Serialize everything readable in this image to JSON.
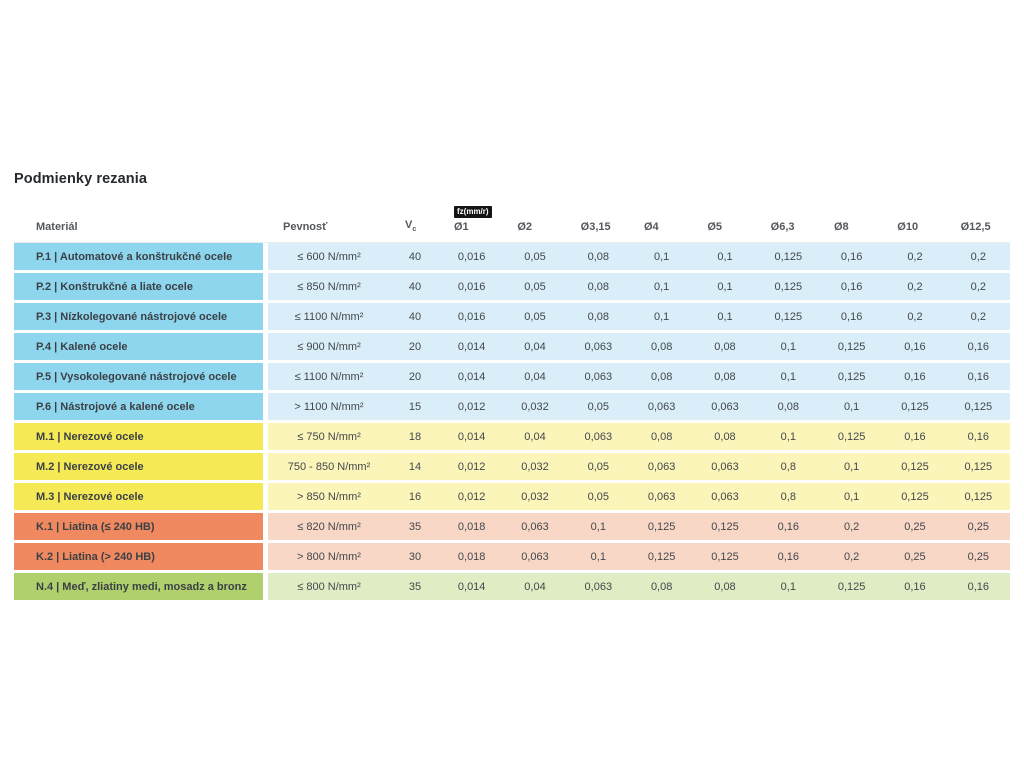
{
  "title": "Podmienky rezania",
  "table": {
    "headers": {
      "material": "Materiál",
      "strength": "Pevnosť",
      "vc_base": "V",
      "vc_sub": "c",
      "fz_badge": "fz(mm/r)",
      "diameters": [
        "Ø1",
        "Ø2",
        "Ø3,15",
        "Ø4",
        "Ø5",
        "Ø6,3",
        "Ø8",
        "Ø10",
        "Ø12,5"
      ]
    },
    "rows": [
      {
        "group": "P",
        "material": "P.1 | Automatové a konštrukčné ocele",
        "strength": "≤ 600 N/mm²",
        "vc": "40",
        "fz": [
          "0,016",
          "0,05",
          "0,08",
          "0,1",
          "0,1",
          "0,125",
          "0,16",
          "0,2",
          "0,2"
        ]
      },
      {
        "group": "P",
        "material": "P.2 | Konštrukčné a liate ocele",
        "strength": "≤ 850 N/mm²",
        "vc": "40",
        "fz": [
          "0,016",
          "0,05",
          "0,08",
          "0,1",
          "0,1",
          "0,125",
          "0,16",
          "0,2",
          "0,2"
        ]
      },
      {
        "group": "P",
        "material": "P.3 | Nízkolegované nástrojové ocele",
        "strength": "≤ 1100 N/mm²",
        "vc": "40",
        "fz": [
          "0,016",
          "0,05",
          "0,08",
          "0,1",
          "0,1",
          "0,125",
          "0,16",
          "0,2",
          "0,2"
        ]
      },
      {
        "group": "P",
        "material": "P.4 | Kalené ocele",
        "strength": "≤ 900 N/mm²",
        "vc": "20",
        "fz": [
          "0,014",
          "0,04",
          "0,063",
          "0,08",
          "0,08",
          "0,1",
          "0,125",
          "0,16",
          "0,16"
        ]
      },
      {
        "group": "P",
        "material": "P.5 | Vysokolegované nástrojové ocele",
        "strength": "≤ 1100 N/mm²",
        "vc": "20",
        "fz": [
          "0,014",
          "0,04",
          "0,063",
          "0,08",
          "0,08",
          "0,1",
          "0,125",
          "0,16",
          "0,16"
        ]
      },
      {
        "group": "P",
        "material": "P.6 | Nástrojové a kalené ocele",
        "strength": "> 1100 N/mm²",
        "vc": "15",
        "fz": [
          "0,012",
          "0,032",
          "0,05",
          "0,063",
          "0,063",
          "0,08",
          "0,1",
          "0,125",
          "0,125"
        ]
      },
      {
        "group": "M",
        "material": "M.1 | Nerezové ocele",
        "strength": "≤ 750 N/mm²",
        "vc": "18",
        "fz": [
          "0,014",
          "0,04",
          "0,063",
          "0,08",
          "0,08",
          "0,1",
          "0,125",
          "0,16",
          "0,16"
        ]
      },
      {
        "group": "M",
        "material": "M.2 | Nerezové ocele",
        "strength": "750 - 850 N/mm²",
        "vc": "14",
        "fz": [
          "0,012",
          "0,032",
          "0,05",
          "0,063",
          "0,063",
          "0,8",
          "0,1",
          "0,125",
          "0,125"
        ]
      },
      {
        "group": "M",
        "material": "M.3 | Nerezové ocele",
        "strength": "> 850 N/mm²",
        "vc": "16",
        "fz": [
          "0,012",
          "0,032",
          "0,05",
          "0,063",
          "0,063",
          "0,8",
          "0,1",
          "0,125",
          "0,125"
        ]
      },
      {
        "group": "K",
        "material": "K.1 | Liatina (≤ 240 HB)",
        "strength": "≤ 820 N/mm²",
        "vc": "35",
        "fz": [
          "0,018",
          "0,063",
          "0,1",
          "0,125",
          "0,125",
          "0,16",
          "0,2",
          "0,25",
          "0,25"
        ]
      },
      {
        "group": "K",
        "material": "K.2 | Liatina (> 240 HB)",
        "strength": "> 800 N/mm²",
        "vc": "30",
        "fz": [
          "0,018",
          "0,063",
          "0,1",
          "0,125",
          "0,125",
          "0,16",
          "0,2",
          "0,25",
          "0,25"
        ]
      },
      {
        "group": "N",
        "material": "N.4 | Meď, zliatiny medi, mosadz a bronz",
        "strength": "≤ 800 N/mm²",
        "vc": "35",
        "fz": [
          "0,014",
          "0,04",
          "0,063",
          "0,08",
          "0,08",
          "0,1",
          "0,125",
          "0,16",
          "0,16"
        ]
      }
    ]
  },
  "colors": {
    "P": {
      "dark": "#8ED6EE",
      "light": "#D9EEF8"
    },
    "M": {
      "dark": "#F5EA55",
      "light": "#FBF5B9"
    },
    "K": {
      "dark": "#F0895F",
      "light": "#F8D7C6"
    },
    "N": {
      "dark": "#AFD06C",
      "light": "#E0ECC4"
    }
  }
}
